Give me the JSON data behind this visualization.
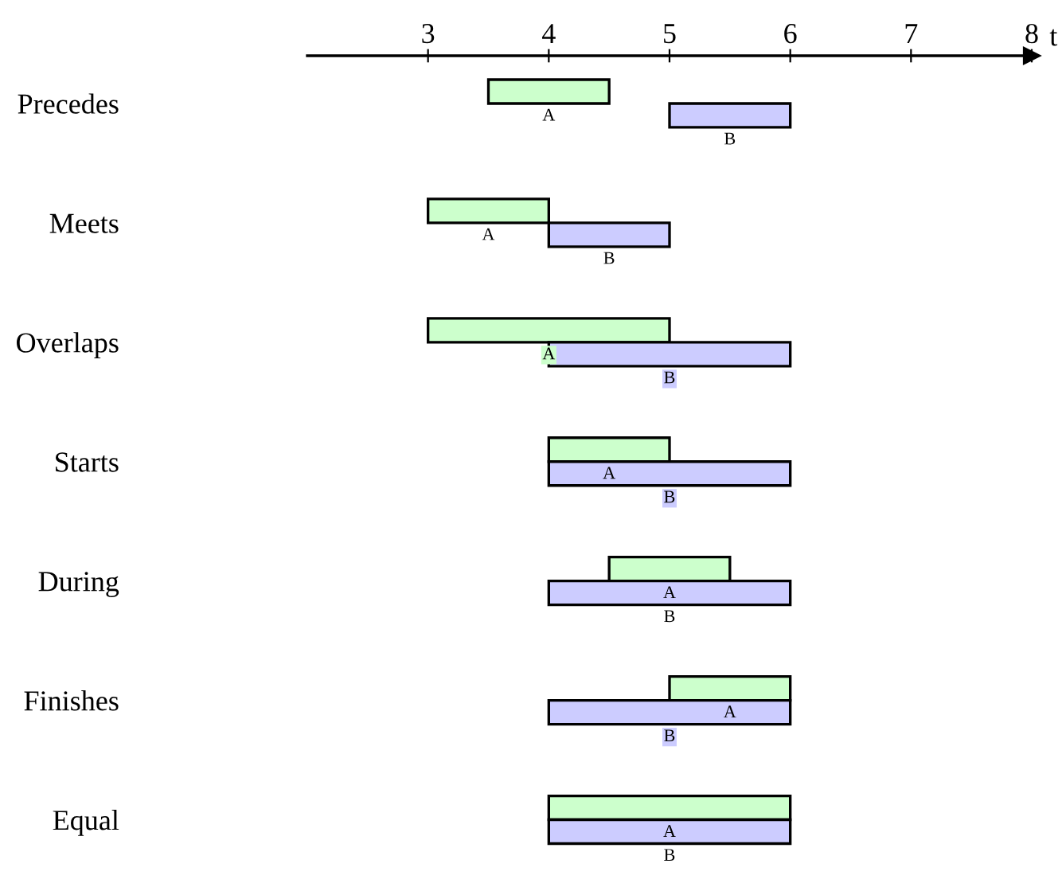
{
  "chart_data": {
    "type": "bar",
    "orientation": "horizontal",
    "categories": [
      "Precedes",
      "Meets",
      "Overlaps",
      "Starts",
      "During",
      "Finishes",
      "Equal"
    ],
    "series": [
      {
        "name": "A",
        "color": "#ccffcc",
        "axis": "x2",
        "base": [
          3.5,
          3,
          3,
          4,
          4.5,
          5,
          4
        ],
        "values": [
          1,
          1,
          2,
          1,
          1,
          1,
          2
        ]
      },
      {
        "name": "B",
        "color": "#ccccff",
        "axis": "x2",
        "base": [
          5,
          4,
          4,
          4,
          4,
          4,
          4
        ],
        "values": [
          1,
          1,
          2,
          2,
          2,
          2,
          2
        ]
      }
    ],
    "x2label": "t",
    "x2lim": [
      2,
      8
    ],
    "x2ticks": [
      3,
      4,
      5,
      6,
      7,
      8
    ],
    "grid": false,
    "legend": false
  }
}
